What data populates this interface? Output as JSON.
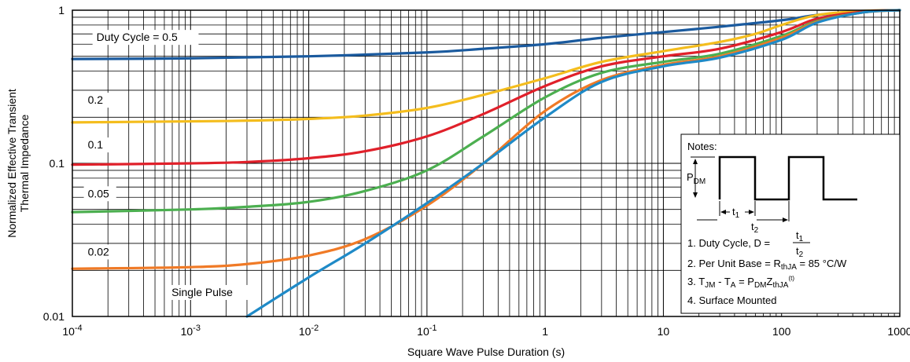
{
  "chart_data": {
    "type": "line",
    "x_scale": "log",
    "y_scale": "log",
    "xlim": [
      0.0001,
      1000
    ],
    "ylim": [
      0.01,
      1
    ],
    "grid": true,
    "xlabel": "Square Wave Pulse Duration (s)",
    "ylabel_lines": [
      "Normalized Effective Transient",
      "Thermal Impedance"
    ],
    "x_ticks": [
      {
        "value": 0.0001,
        "base": "10",
        "exp": "-4"
      },
      {
        "value": 0.001,
        "base": "10",
        "exp": "-3"
      },
      {
        "value": 0.01,
        "base": "10",
        "exp": "-2"
      },
      {
        "value": 0.1,
        "base": "10",
        "exp": "-1"
      },
      {
        "value": 1,
        "base": "1",
        "exp": ""
      },
      {
        "value": 10,
        "base": "10",
        "exp": ""
      },
      {
        "value": 100,
        "base": "100",
        "exp": ""
      },
      {
        "value": 1000,
        "base": "1000",
        "exp": ""
      }
    ],
    "y_ticks": [
      {
        "value": 1,
        "label": "1"
      },
      {
        "value": 0.1,
        "label": "0.1"
      },
      {
        "value": 0.01,
        "label": "0.01"
      }
    ],
    "series": [
      {
        "name": "Duty Cycle = 0.5",
        "color": "#1a5a9e",
        "points": [
          [
            0.0001,
            0.48
          ],
          [
            0.001,
            0.485
          ],
          [
            0.01,
            0.5
          ],
          [
            0.1,
            0.53
          ],
          [
            0.3,
            0.56
          ],
          [
            1,
            0.6
          ],
          [
            3,
            0.66
          ],
          [
            10,
            0.72
          ],
          [
            30,
            0.78
          ],
          [
            100,
            0.86
          ],
          [
            200,
            0.93
          ],
          [
            500,
            0.985
          ],
          [
            1000,
            1
          ]
        ]
      },
      {
        "name": "0.2",
        "color": "#f4bd1d",
        "points": [
          [
            0.0001,
            0.185
          ],
          [
            0.001,
            0.188
          ],
          [
            0.003,
            0.19
          ],
          [
            0.01,
            0.195
          ],
          [
            0.03,
            0.205
          ],
          [
            0.1,
            0.23
          ],
          [
            0.3,
            0.28
          ],
          [
            1,
            0.36
          ],
          [
            3,
            0.46
          ],
          [
            10,
            0.54
          ],
          [
            30,
            0.62
          ],
          [
            60,
            0.7
          ],
          [
            100,
            0.8
          ],
          [
            200,
            0.93
          ],
          [
            500,
            0.99
          ],
          [
            1000,
            1
          ]
        ]
      },
      {
        "name": "0.1",
        "color": "#e0202a",
        "points": [
          [
            0.0001,
            0.098
          ],
          [
            0.001,
            0.1
          ],
          [
            0.003,
            0.102
          ],
          [
            0.01,
            0.108
          ],
          [
            0.03,
            0.12
          ],
          [
            0.1,
            0.15
          ],
          [
            0.3,
            0.21
          ],
          [
            1,
            0.32
          ],
          [
            3,
            0.43
          ],
          [
            10,
            0.5
          ],
          [
            30,
            0.56
          ],
          [
            100,
            0.72
          ],
          [
            200,
            0.88
          ],
          [
            500,
            0.98
          ],
          [
            1000,
            1
          ]
        ]
      },
      {
        "name": "0.05",
        "color": "#4caf50",
        "points": [
          [
            0.0001,
            0.048
          ],
          [
            0.001,
            0.05
          ],
          [
            0.003,
            0.052
          ],
          [
            0.01,
            0.056
          ],
          [
            0.03,
            0.066
          ],
          [
            0.1,
            0.09
          ],
          [
            0.3,
            0.15
          ],
          [
            1,
            0.27
          ],
          [
            3,
            0.39
          ],
          [
            10,
            0.46
          ],
          [
            30,
            0.52
          ],
          [
            100,
            0.68
          ],
          [
            200,
            0.85
          ],
          [
            500,
            0.97
          ],
          [
            1000,
            1
          ]
        ]
      },
      {
        "name": "0.02",
        "color": "#f07a26",
        "points": [
          [
            0.0001,
            0.0205
          ],
          [
            0.001,
            0.021
          ],
          [
            0.003,
            0.022
          ],
          [
            0.01,
            0.025
          ],
          [
            0.03,
            0.032
          ],
          [
            0.1,
            0.053
          ],
          [
            0.3,
            0.1
          ],
          [
            1,
            0.22
          ],
          [
            3,
            0.35
          ],
          [
            10,
            0.44
          ],
          [
            30,
            0.5
          ],
          [
            100,
            0.66
          ],
          [
            200,
            0.84
          ],
          [
            500,
            0.97
          ],
          [
            1000,
            1
          ]
        ]
      },
      {
        "name": "Single Pulse",
        "color": "#1f8ac7",
        "points": [
          [
            0.003,
            0.01
          ],
          [
            0.01,
            0.018
          ],
          [
            0.03,
            0.03
          ],
          [
            0.1,
            0.055
          ],
          [
            0.3,
            0.1
          ],
          [
            1,
            0.2
          ],
          [
            3,
            0.34
          ],
          [
            10,
            0.43
          ],
          [
            30,
            0.49
          ],
          [
            100,
            0.64
          ],
          [
            200,
            0.83
          ],
          [
            500,
            0.97
          ],
          [
            1000,
            1
          ]
        ]
      }
    ],
    "series_labels": [
      {
        "text": "Duty Cycle = 0.5",
        "x": 0.00016,
        "y": 0.63
      },
      {
        "text": "0.2",
        "x": 0.000135,
        "y": 0.245
      },
      {
        "text": "0.1",
        "x": 0.000135,
        "y": 0.125
      },
      {
        "text": "0.05",
        "x": 0.000135,
        "y": 0.06
      },
      {
        "text": "0.02",
        "x": 0.000135,
        "y": 0.025
      },
      {
        "text": "Single Pulse",
        "x": 0.00069,
        "y": 0.0136
      }
    ],
    "notes": {
      "heading": "Notes:",
      "pdm": {
        "base": "P",
        "sub": "DM"
      },
      "t1": {
        "base": "t",
        "sub": "1"
      },
      "t2": {
        "base": "t",
        "sub": "2"
      },
      "n1_prefix": "1. Duty Cycle, D = ",
      "n2_prefix": "2. Per Unit Base = R",
      "n2_sub": "thJA",
      "n2_suffix": " = 85 °C/W",
      "n3_a": "3. T",
      "n3_a_sub": "JM",
      "n3_b": " - T",
      "n3_b_sub": "A",
      "n3_c": " = P",
      "n3_c_sub": "DM",
      "n3_d": "Z",
      "n3_d_sub": "thJA",
      "n3_d_sup": "(t)",
      "n4": "4. Surface Mounted"
    }
  }
}
